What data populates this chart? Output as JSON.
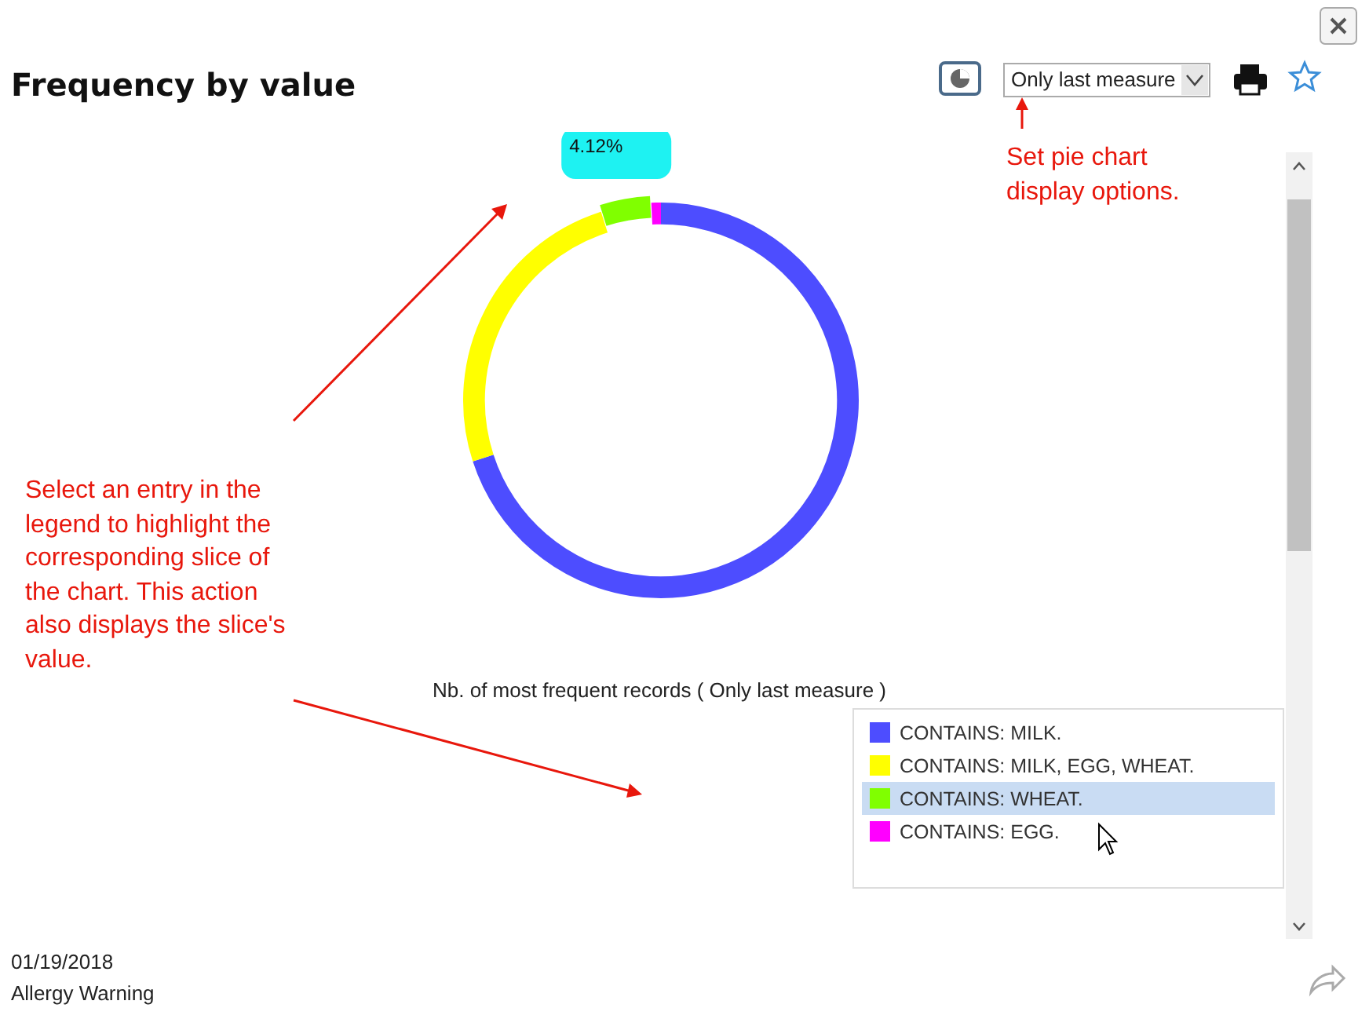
{
  "chart_data": {
    "type": "donut",
    "title": "Frequency by value",
    "subtitle": "Nb. of most frequent records ( Only last measure )",
    "categories": [
      "CONTAINS: MILK.",
      "CONTAINS: MILK, EGG, WHEAT.",
      "CONTAINS: WHEAT.",
      "CONTAINS: EGG."
    ],
    "values": [
      70,
      25.1,
      4.12,
      0.78
    ],
    "colors": [
      "#4d4dff",
      "#ffff00",
      "#80ff00",
      "#ff00ff"
    ],
    "value_labels": [
      null,
      null,
      "4.12%",
      null
    ],
    "legend": "bottom right",
    "annotations": [
      "Only last measure",
      "Set pie chart display options.",
      "Select an entry in the legend to highlight the corresponding slice of the chart. This action also displays the slice's value.",
      "01/19/2018",
      "Allergy Warning"
    ]
  }
}
